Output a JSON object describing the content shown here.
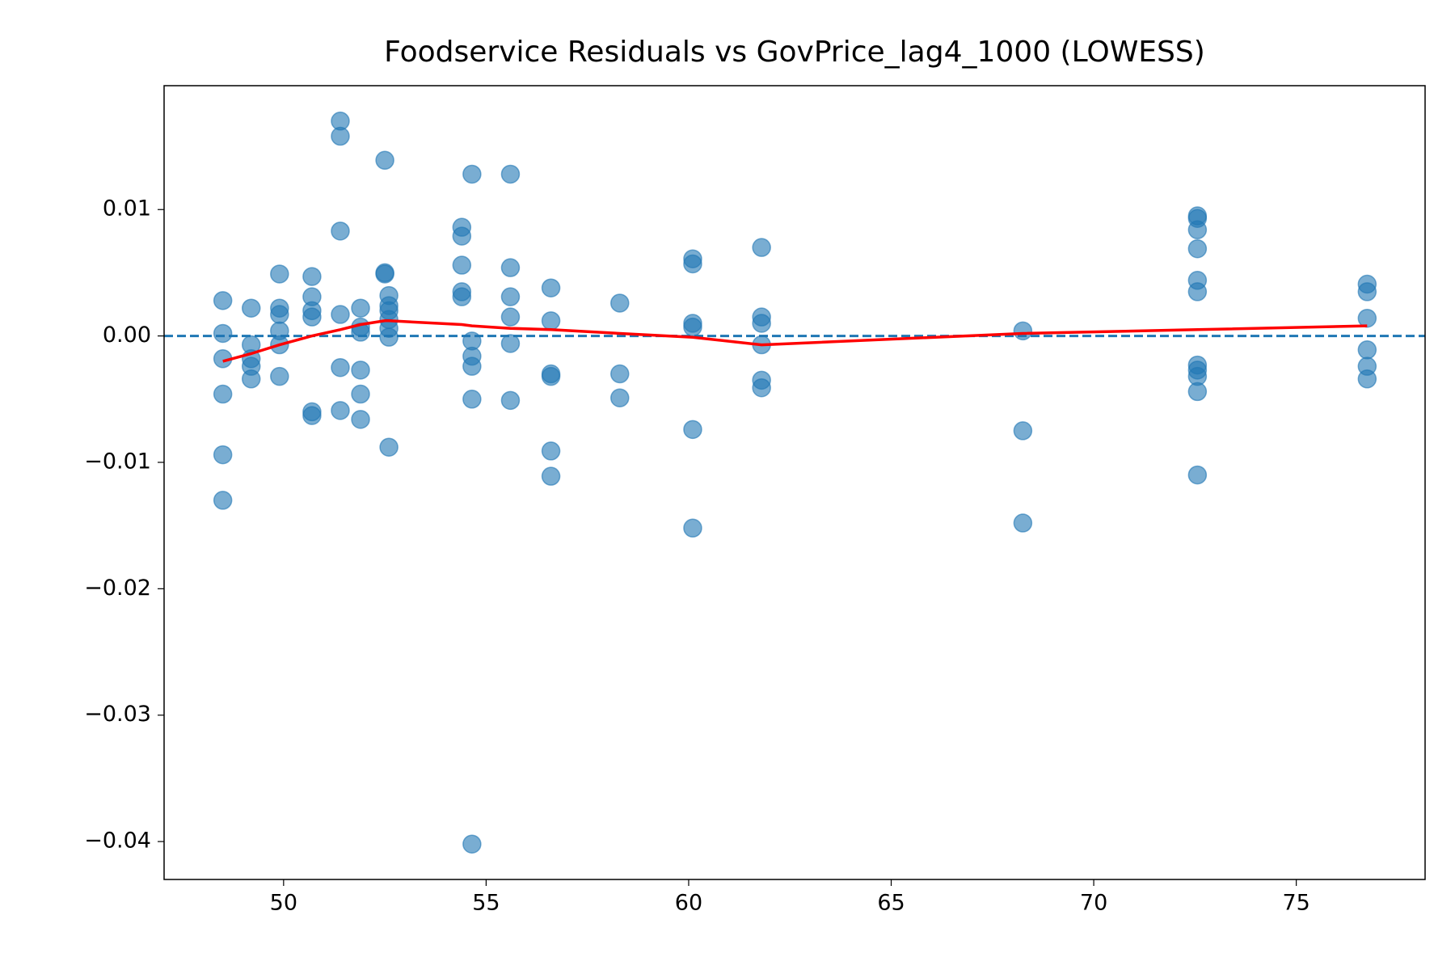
{
  "chart_data": {
    "type": "scatter",
    "title": "Foodservice Residuals vs GovPrice_lag4_1000 (LOWESS)",
    "x": [
      48.5,
      48.5,
      48.5,
      48.5,
      48.5,
      48.5,
      49.2,
      49.2,
      49.2,
      49.2,
      49.2,
      49.9,
      49.9,
      49.9,
      49.9,
      49.9,
      49.9,
      50.7,
      50.7,
      50.7,
      50.7,
      50.7,
      50.7,
      51.4,
      51.4,
      51.4,
      51.4,
      51.4,
      51.4,
      51.9,
      51.9,
      51.9,
      51.9,
      51.9,
      51.9,
      52.5,
      52.5,
      52.5,
      52.6,
      52.6,
      52.6,
      52.6,
      52.6,
      52.6,
      52.6,
      54.4,
      54.4,
      54.4,
      54.4,
      54.4,
      54.65,
      54.65,
      54.65,
      54.65,
      54.65,
      54.65,
      55.6,
      55.6,
      55.6,
      55.6,
      55.6,
      55.6,
      56.6,
      56.6,
      56.6,
      56.6,
      56.6,
      56.6,
      58.3,
      58.3,
      58.3,
      60.1,
      60.1,
      60.1,
      60.1,
      60.1,
      60.1,
      61.8,
      61.8,
      61.8,
      61.8,
      61.8,
      61.8,
      68.25,
      68.25,
      68.25,
      72.56,
      72.56,
      72.56,
      72.56,
      72.56,
      72.56,
      72.56,
      72.56,
      72.56,
      72.56,
      72.56,
      76.75,
      76.75,
      76.75,
      76.75,
      76.75,
      76.75
    ],
    "values": [
      0.0028,
      0.0002,
      -0.0018,
      -0.0046,
      -0.0094,
      -0.013,
      0.0022,
      -0.0007,
      -0.0018,
      -0.0024,
      -0.0034,
      0.0049,
      0.0022,
      0.0017,
      0.0004,
      -0.0007,
      -0.0032,
      0.0047,
      0.0031,
      0.002,
      0.0015,
      -0.006,
      -0.0063,
      0.017,
      0.0158,
      0.0083,
      0.0017,
      -0.0025,
      -0.0059,
      0.0022,
      0.0007,
      0.0003,
      -0.0027,
      -0.0046,
      -0.0066,
      0.0139,
      0.005,
      0.0049,
      0.0032,
      0.0024,
      0.002,
      0.0013,
      0.0006,
      -0.0001,
      -0.0088,
      0.0086,
      0.0079,
      0.0056,
      0.0035,
      0.0031,
      0.0128,
      -0.0004,
      -0.0016,
      -0.0024,
      -0.005,
      -0.0402,
      0.0128,
      0.0054,
      0.0031,
      0.0015,
      -0.0006,
      -0.0051,
      0.0038,
      0.0012,
      -0.003,
      -0.0032,
      -0.0091,
      -0.0111,
      0.0026,
      -0.003,
      -0.0049,
      0.0061,
      0.0057,
      0.001,
      0.0007,
      -0.0074,
      -0.0152,
      0.007,
      0.0015,
      0.001,
      -0.0007,
      -0.0035,
      -0.0041,
      0.0004,
      -0.0075,
      -0.0148,
      0.0095,
      0.0093,
      0.0084,
      0.0069,
      0.0044,
      0.0035,
      -0.0023,
      -0.0027,
      -0.0032,
      -0.0044,
      -0.011,
      0.0041,
      0.0035,
      0.0014,
      -0.0011,
      -0.0024,
      -0.0034
    ],
    "color": "#1f77b4",
    "lowess": {
      "color": "#ff0000",
      "x": [
        48.5,
        49.2,
        49.9,
        50.7,
        51.4,
        51.9,
        52.5,
        52.6,
        54.4,
        54.65,
        55.6,
        56.6,
        58.3,
        60.1,
        61.8,
        68.25,
        72.56,
        76.75
      ],
      "values": [
        -0.002,
        -0.0014,
        -0.0007,
        0.0,
        0.0005,
        0.0009,
        0.0012,
        0.0012,
        0.0009,
        0.0008,
        0.0006,
        0.0005,
        0.0002,
        -0.0001,
        -0.0007,
        0.0002,
        0.0005,
        0.0008
      ]
    },
    "reference_line": {
      "value": 0,
      "color": "#1f77b4",
      "style": "dashed"
    },
    "xlim": [
      47.05,
      78.18
    ],
    "ylim": [
      -0.043,
      0.0198
    ],
    "xticks": [
      50,
      55,
      60,
      65,
      70,
      75
    ],
    "yticks": [
      {
        "value": -0.04,
        "label": "−0.04"
      },
      {
        "value": -0.03,
        "label": "−0.03"
      },
      {
        "value": -0.02,
        "label": "−0.02"
      },
      {
        "value": -0.01,
        "label": "−0.01"
      },
      {
        "value": 0,
        "label": "0.00"
      },
      0.01
    ]
  }
}
